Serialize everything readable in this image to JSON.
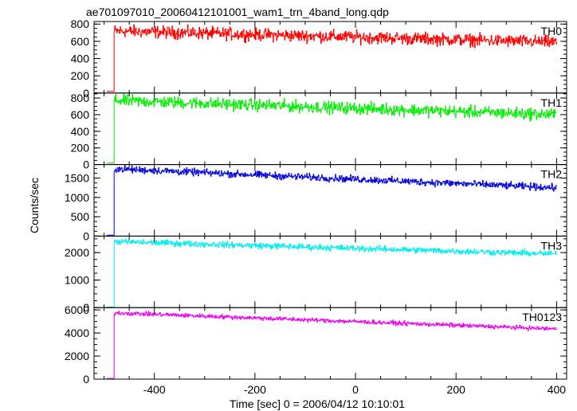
{
  "chart_data": {
    "type": "line",
    "title": "ae701097010_20060412101001_wam1_trn_4band_long.qdp",
    "xlabel": "Time [sec] 0 = 2006/04/12 10:10:01",
    "ylabel": "Counts/sec",
    "xlim": [
      -520,
      420
    ],
    "xticks": [
      -400,
      -200,
      0,
      200,
      400
    ],
    "x_start": -495,
    "x_step": 1,
    "onset_x": -480,
    "x_end": 400,
    "grid": false,
    "panels": [
      {
        "name": "TH0",
        "color": "#ff0000",
        "ylim": [
          0,
          830
        ],
        "yticks": [
          0,
          200,
          400,
          600,
          800
        ],
        "pre_level": 20,
        "start_level": 720,
        "end_level": 590,
        "noise": 35
      },
      {
        "name": "TH1",
        "color": "#00ee00",
        "ylim": [
          0,
          860
        ],
        "yticks": [
          0,
          200,
          400,
          600,
          800
        ],
        "pre_level": 20,
        "start_level": 770,
        "end_level": 600,
        "noise": 35
      },
      {
        "name": "TH2",
        "color": "#0000dd",
        "ylim": [
          0,
          1850
        ],
        "yticks": [
          0,
          500,
          1000,
          1500
        ],
        "pre_level": 25,
        "start_level": 1740,
        "end_level": 1250,
        "noise": 45
      },
      {
        "name": "TH3",
        "color": "#00eeee",
        "ylim": [
          0,
          2600
        ],
        "yticks": [
          0,
          1000,
          2000
        ],
        "pre_level": 20,
        "start_level": 2400,
        "end_level": 1950,
        "noise": 55
      },
      {
        "name": "TH0123",
        "color": "#ee00ee",
        "ylim": [
          0,
          6200
        ],
        "yticks": [
          0,
          2000,
          4000,
          6000
        ],
        "pre_level": 60,
        "start_level": 5750,
        "end_level": 4350,
        "noise": 90
      }
    ]
  }
}
